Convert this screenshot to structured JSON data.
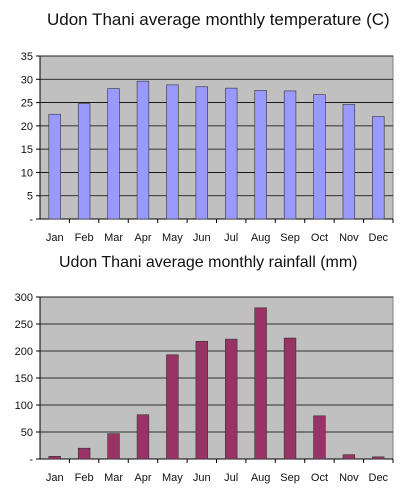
{
  "chart_data": [
    {
      "type": "bar",
      "title": "Udon Thani average monthly temperature (C)",
      "xlabel": "",
      "ylabel": "",
      "categories": [
        "Jan",
        "Feb",
        "Mar",
        "Apr",
        "May",
        "Jun",
        "Jul",
        "Aug",
        "Sep",
        "Oct",
        "Nov",
        "Dec"
      ],
      "values": [
        22.5,
        24.8,
        28.0,
        29.6,
        28.8,
        28.4,
        28.1,
        27.6,
        27.5,
        26.7,
        24.6,
        22.0
      ],
      "ylim": [
        0,
        35
      ],
      "yticks": [
        0,
        5,
        10,
        15,
        20,
        25,
        30,
        35
      ],
      "ytick_labels": [
        "-",
        "5",
        "10",
        "15",
        "20",
        "25",
        "30",
        "35"
      ],
      "grid": true,
      "bar_color": "#9999ff",
      "plot_background": "#c0c0c0"
    },
    {
      "type": "bar",
      "title": "Udon Thani average monthly rainfall (mm)",
      "xlabel": "",
      "ylabel": "",
      "categories": [
        "Jan",
        "Feb",
        "Mar",
        "Apr",
        "May",
        "Jun",
        "Jul",
        "Aug",
        "Sep",
        "Oct",
        "Nov",
        "Dec"
      ],
      "values": [
        5,
        20,
        47,
        82,
        193,
        218,
        222,
        280,
        224,
        80,
        8,
        4
      ],
      "ylim": [
        0,
        300
      ],
      "yticks": [
        0,
        50,
        100,
        150,
        200,
        250,
        300
      ],
      "ytick_labels": [
        "-",
        "50",
        "100",
        "150",
        "200",
        "250",
        "300"
      ],
      "grid": true,
      "bar_color": "#993366",
      "plot_background": "#c0c0c0"
    }
  ]
}
